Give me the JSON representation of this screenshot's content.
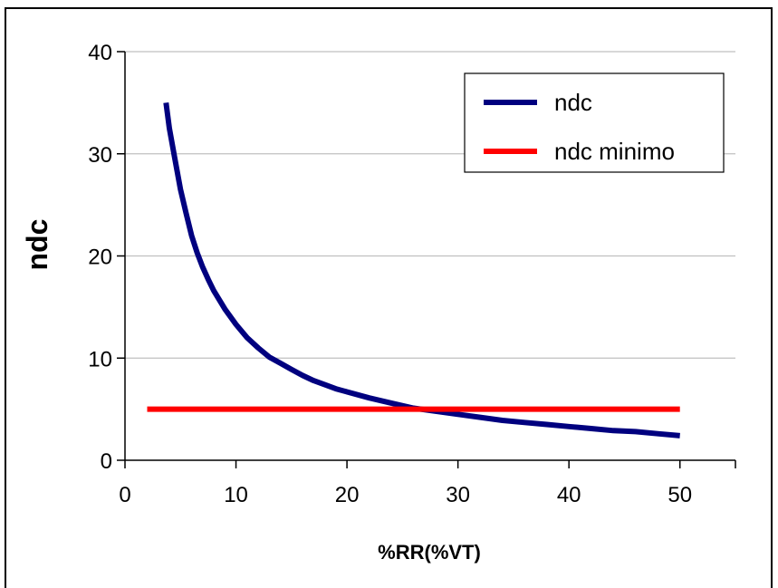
{
  "chart_data": {
    "type": "line",
    "title": "",
    "xlabel": "%RR(%VT)",
    "ylabel": "ndc",
    "xlim": [
      0,
      55
    ],
    "ylim": [
      0,
      40
    ],
    "xticks": [
      0,
      10,
      20,
      30,
      40,
      50
    ],
    "yticks": [
      0,
      10,
      20,
      30,
      40
    ],
    "grid": "horizontal",
    "legend_position": "top-right",
    "colors": {
      "ndc": "#00007f",
      "ndc_minimo": "#ff0000",
      "grid": "#c0c0c0",
      "axis": "#000000"
    },
    "series": [
      {
        "name": "ndc",
        "x": [
          3.7,
          4,
          4.5,
          5,
          5.5,
          6,
          6.5,
          7,
          7.5,
          8,
          9,
          10,
          11,
          12,
          13,
          14,
          15,
          16,
          17,
          18,
          19,
          20,
          22,
          24,
          26,
          28,
          30,
          32,
          34,
          36,
          38,
          40,
          42,
          44,
          46,
          48,
          50
        ],
        "y": [
          35,
          32.5,
          29.5,
          26.5,
          24.2,
          22,
          20.3,
          18.9,
          17.7,
          16.6,
          14.8,
          13.3,
          12,
          11,
          10.1,
          9.5,
          8.9,
          8.3,
          7.8,
          7.4,
          7,
          6.7,
          6.1,
          5.6,
          5.1,
          4.8,
          4.5,
          4.2,
          3.9,
          3.7,
          3.5,
          3.3,
          3.1,
          2.9,
          2.8,
          2.6,
          2.4
        ]
      },
      {
        "name": "ndc minimo",
        "x": [
          2,
          50
        ],
        "y": [
          5,
          5
        ]
      }
    ]
  }
}
